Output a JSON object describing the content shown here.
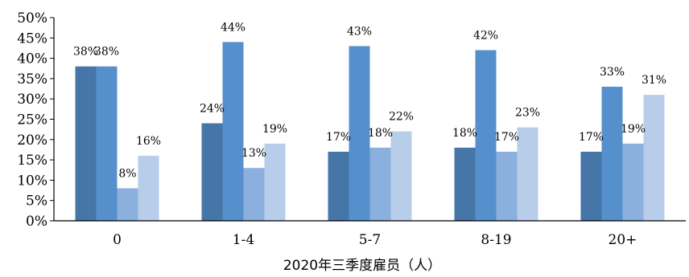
{
  "chart_data": {
    "type": "bar",
    "title": "",
    "xlabel": "2020年三季度雇员（人）",
    "ylabel": "",
    "ylim": [
      0,
      50
    ],
    "yticks": [
      "0%",
      "5%",
      "10%",
      "15%",
      "20%",
      "25%",
      "30%",
      "35%",
      "40%",
      "45%",
      "50%"
    ],
    "grid": false,
    "legend": "none",
    "categories": [
      "0",
      "1-4",
      "5-7",
      "8-19",
      "20+"
    ],
    "series": [
      {
        "values": [
          38,
          24,
          17,
          18,
          17
        ],
        "labels": [
          "38%",
          "24%",
          "17%",
          "18%",
          "17%"
        ],
        "color": "#4676a8"
      },
      {
        "values": [
          38,
          44,
          43,
          42,
          33
        ],
        "labels": [
          "38%",
          "44%",
          "43%",
          "42%",
          "33%"
        ],
        "color": "#5590cc"
      },
      {
        "values": [
          8,
          13,
          18,
          17,
          19
        ],
        "labels": [
          "8%",
          "13%",
          "18%",
          "17%",
          "19%"
        ],
        "color": "#8bb0dd"
      },
      {
        "values": [
          16,
          19,
          22,
          23,
          31
        ],
        "labels": [
          "16%",
          "19%",
          "22%",
          "23%",
          "31%"
        ],
        "color": "#b7cde9"
      }
    ]
  }
}
